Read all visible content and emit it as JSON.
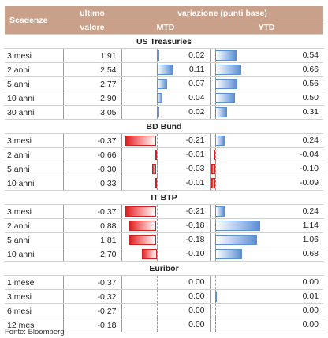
{
  "header": {
    "scadenze": "Scadenze",
    "ultimo_line1": "ultimo",
    "ultimo_line2": "valore",
    "variazione": "variazione (punti base)",
    "mtd": "MTD",
    "ytd": "YTD"
  },
  "colors": {
    "header_bg": "#c9a08a",
    "positive": "#5d8fd3",
    "negative": "#e02020"
  },
  "sections": [
    {
      "title": "US Treasuries",
      "rows": [
        {
          "scadenza": "3 mesi",
          "ultimo": "1.91",
          "mtd": "0.02",
          "ytd": "0.54"
        },
        {
          "scadenza": "2 anni",
          "ultimo": "2.54",
          "mtd": "0.11",
          "ytd": "0.66"
        },
        {
          "scadenza": "5 anni",
          "ultimo": "2.77",
          "mtd": "0.07",
          "ytd": "0.56"
        },
        {
          "scadenza": "10 anni",
          "ultimo": "2.90",
          "mtd": "0.04",
          "ytd": "0.50"
        },
        {
          "scadenza": "30 anni",
          "ultimo": "3.05",
          "mtd": "0.02",
          "ytd": "0.31"
        }
      ]
    },
    {
      "title": "BD Bund",
      "rows": [
        {
          "scadenza": "3 mesi",
          "ultimo": "-0.37",
          "mtd": "-0.21",
          "ytd": "0.24"
        },
        {
          "scadenza": "2 anni",
          "ultimo": "-0.66",
          "mtd": "-0.01",
          "ytd": "-0.04"
        },
        {
          "scadenza": "5 anni",
          "ultimo": "-0.30",
          "mtd": "-0.03",
          "ytd": "-0.10"
        },
        {
          "scadenza": "10 anni",
          "ultimo": "0.33",
          "mtd": "-0.01",
          "ytd": "-0.09"
        }
      ]
    },
    {
      "title": "IT BTP",
      "rows": [
        {
          "scadenza": "3 mesi",
          "ultimo": "-0.37",
          "mtd": "-0.21",
          "ytd": "0.24"
        },
        {
          "scadenza": "2 anni",
          "ultimo": "0.88",
          "mtd": "-0.18",
          "ytd": "1.14"
        },
        {
          "scadenza": "5 anni",
          "ultimo": "1.81",
          "mtd": "-0.18",
          "ytd": "1.06"
        },
        {
          "scadenza": "10 anni",
          "ultimo": "2.70",
          "mtd": "-0.10",
          "ytd": "0.68"
        }
      ]
    },
    {
      "title": "Euribor",
      "rows": [
        {
          "scadenza": "1 mese",
          "ultimo": "-0.37",
          "mtd": "0.00",
          "ytd": "0.00"
        },
        {
          "scadenza": "3 mesi",
          "ultimo": "-0.32",
          "mtd": "0.00",
          "ytd": "0.01"
        },
        {
          "scadenza": "6 mesi",
          "ultimo": "-0.27",
          "mtd": "0.00",
          "ytd": "0.00"
        },
        {
          "scadenza": "12 mesi",
          "ultimo": "-0.18",
          "mtd": "0.00",
          "ytd": "0.00"
        }
      ]
    }
  ],
  "footnote": "Fonte: Bloomberg"
}
